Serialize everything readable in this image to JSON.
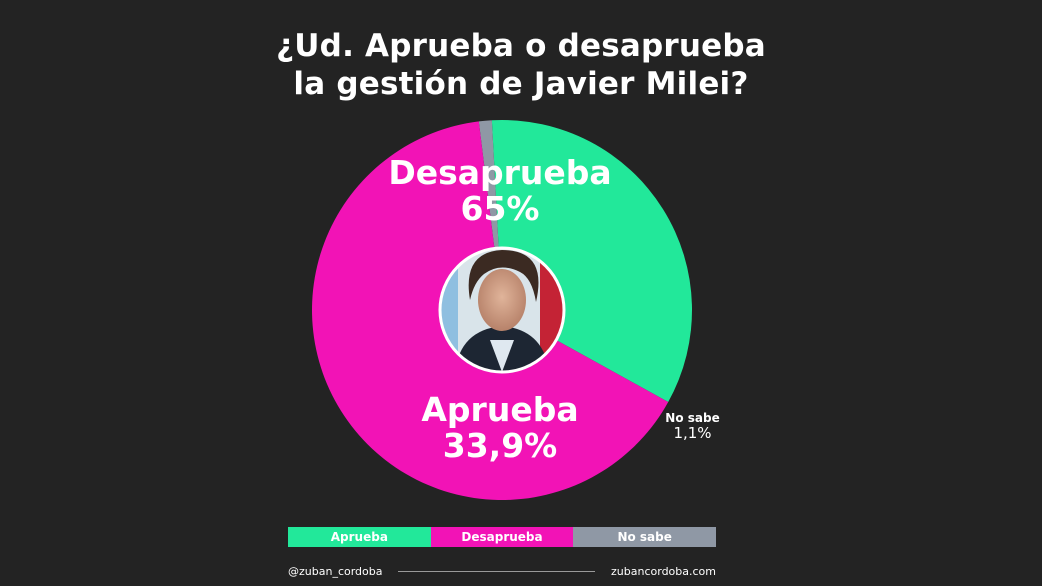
{
  "colors": {
    "background": "#232323",
    "aprueba": "#22e89a",
    "desaprueba": "#f213b6",
    "no_sabe": "#8f98a5",
    "text": "#ffffff"
  },
  "chart_data": {
    "type": "pie",
    "title_lines": [
      "¿Ud. Aprueba o desaprueba",
      "la gestión de Javier Milei?"
    ],
    "slices": [
      {
        "name": "Desaprueba",
        "value": 65,
        "display": "65%",
        "color": "#f213b6"
      },
      {
        "name": "Aprueba",
        "value": 33.9,
        "display": "33,9%",
        "color": "#22e89a"
      },
      {
        "name": "No sabe",
        "value": 1.1,
        "display": "1,1%",
        "color": "#8f98a5"
      }
    ],
    "legend": [
      "Aprueba",
      "Desaprueba",
      "No sabe"
    ],
    "legend_placement": "bottom",
    "center_image": "portrait-photo"
  },
  "footer": {
    "handle": "@zuban_cordoba",
    "website": "zubancordoba.com"
  }
}
